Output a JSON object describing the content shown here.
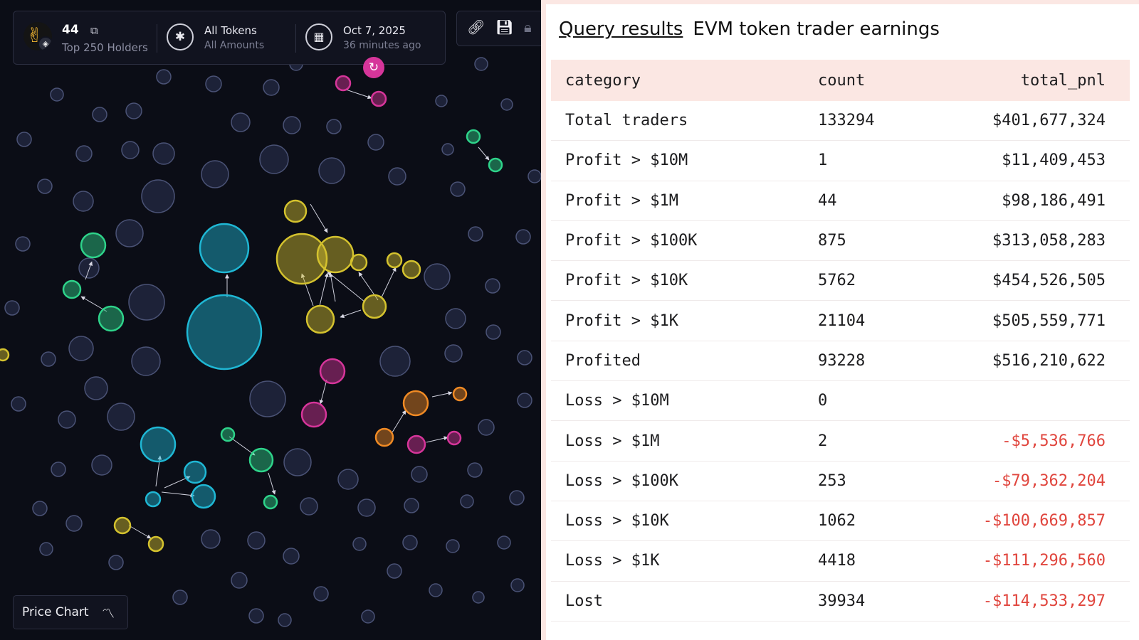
{
  "left_panel": {
    "token_name": "44",
    "token_icon": "hand-icon",
    "chain_badge_icon": "bnb-icon",
    "holders_label": "Top 250 Holders",
    "tokens_title": "All Tokens",
    "tokens_sub": "All Amounts",
    "date_title": "Oct 7, 2025",
    "date_sub": "36 minutes ago",
    "price_chart_label": "Price Chart",
    "colors": {
      "background": "#0b0d16",
      "neutral_bubble": "#1d2238",
      "cluster_yellow": "#d4c22e",
      "cluster_cyan": "#1fb7d4",
      "cluster_green": "#2ed38a",
      "cluster_magenta": "#d6359a",
      "cluster_orange": "#f08a24"
    }
  },
  "query": {
    "link_label": "Query results",
    "title": "EVM token trader earnings",
    "columns": [
      "category",
      "count",
      "total_pnl"
    ],
    "rows": [
      {
        "category": "Total traders",
        "count": "133294",
        "total_pnl": "$401,677,324",
        "negative": false
      },
      {
        "category": "Profit > $10M",
        "count": "1",
        "total_pnl": "$11,409,453",
        "negative": false
      },
      {
        "category": "Profit > $1M",
        "count": "44",
        "total_pnl": "$98,186,491",
        "negative": false
      },
      {
        "category": "Profit > $100K",
        "count": "875",
        "total_pnl": "$313,058,283",
        "negative": false
      },
      {
        "category": "Profit > $10K",
        "count": "5762",
        "total_pnl": "$454,526,505",
        "negative": false
      },
      {
        "category": "Profit > $1K",
        "count": "21104",
        "total_pnl": "$505,559,771",
        "negative": false
      },
      {
        "category": "Profited",
        "count": "93228",
        "total_pnl": "$516,210,622",
        "negative": false
      },
      {
        "category": "Loss > $10M",
        "count": "0",
        "total_pnl": "",
        "negative": false
      },
      {
        "category": "Loss > $1M",
        "count": "2",
        "total_pnl": "-$5,536,766",
        "negative": true
      },
      {
        "category": "Loss > $100K",
        "count": "253",
        "total_pnl": "-$79,362,204",
        "negative": true
      },
      {
        "category": "Loss > $10K",
        "count": "1062",
        "total_pnl": "-$100,669,857",
        "negative": true
      },
      {
        "category": "Loss > $1K",
        "count": "4418",
        "total_pnl": "-$111,296,560",
        "negative": true
      },
      {
        "category": "Lost",
        "count": "39934",
        "total_pnl": "-$114,533,297",
        "negative": true
      }
    ]
  }
}
